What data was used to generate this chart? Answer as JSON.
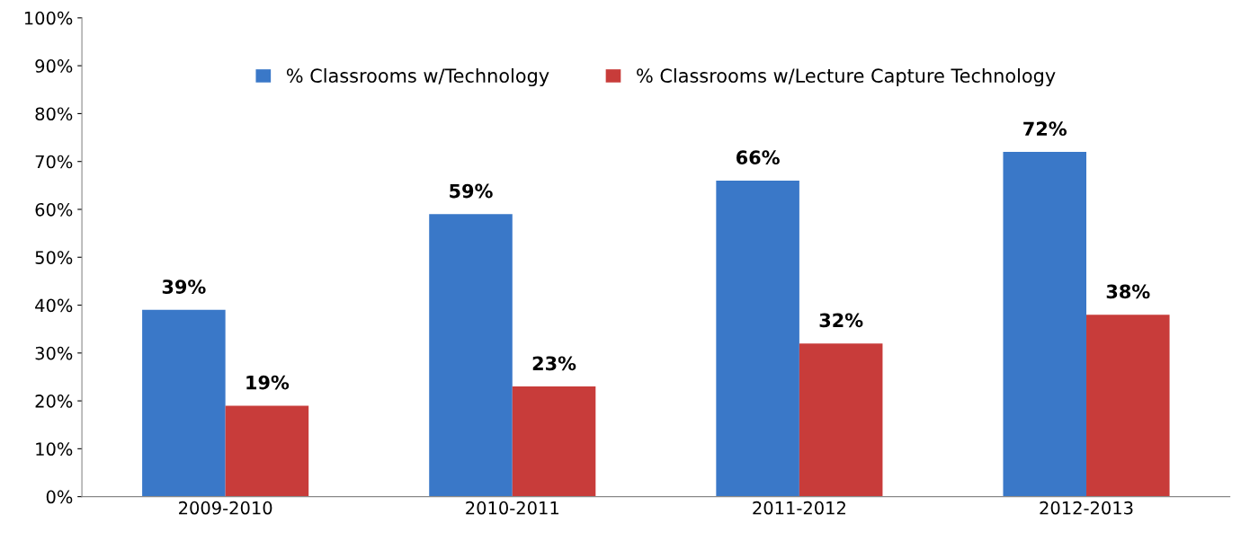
{
  "chart_data": {
    "type": "bar",
    "categories": [
      "2009-2010",
      "2010-2011",
      "2011-2012",
      "2012-2013"
    ],
    "series": [
      {
        "name": "% Classrooms w/Technology",
        "color": "#3a78c8",
        "values": [
          39,
          59,
          66,
          72
        ],
        "value_labels": [
          "39%",
          "59%",
          "66%",
          "72%"
        ]
      },
      {
        "name": "% Classrooms w/Lecture Capture Technology",
        "color": "#c83c3a",
        "values": [
          19,
          23,
          32,
          38
        ],
        "value_labels": [
          "19%",
          "23%",
          "32%",
          "38%"
        ]
      }
    ],
    "ylim": [
      0,
      100
    ],
    "yticks": [
      {
        "value": 0,
        "label": "0%"
      },
      {
        "value": 10,
        "label": "10%"
      },
      {
        "value": 20,
        "label": "20%"
      },
      {
        "value": 30,
        "label": "30%"
      },
      {
        "value": 40,
        "label": "40%"
      },
      {
        "value": 50,
        "label": "50%"
      },
      {
        "value": 60,
        "label": "60%"
      },
      {
        "value": 70,
        "label": "70%"
      },
      {
        "value": 80,
        "label": "80%"
      },
      {
        "value": 90,
        "label": "90%"
      },
      {
        "value": 100,
        "label": "100%"
      }
    ],
    "grid": false,
    "legend": "top"
  }
}
